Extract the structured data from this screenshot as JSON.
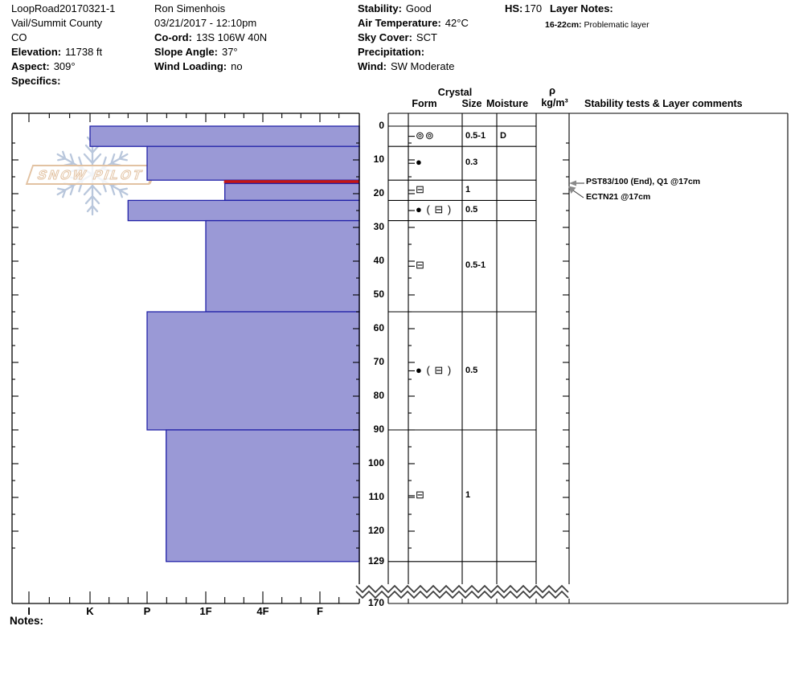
{
  "header": {
    "site": {
      "name": "LoopRoad20170321-1",
      "region": "Vail/Summit County",
      "state": "CO",
      "elevation_label": "Elevation:",
      "elevation": "11738 ft",
      "aspect_label": "Aspect:",
      "aspect": "309°",
      "specifics_label": "Specifics:",
      "specifics": ""
    },
    "obs": {
      "observer": "Ron Simenhois",
      "datetime": "03/21/2017 - 12:10pm",
      "coord_label": "Co-ord:",
      "coord": "13S 106W 40N",
      "slope_label": "Slope Angle:",
      "slope": "37°",
      "wind_loading_label": "Wind Loading:",
      "wind_loading": "no"
    },
    "wx": {
      "stability_label": "Stability:",
      "stability": "Good",
      "air_temp_label": "Air Temperature:",
      "air_temp": "42°C",
      "sky_label": "Sky Cover:",
      "sky": "SCT",
      "precip_label": "Precipitation:",
      "precip": "",
      "wind_label": "Wind:",
      "wind": "SW Moderate"
    },
    "hs_label": "HS:",
    "hs_value": "170",
    "layer_notes_label": "Layer Notes:",
    "layer_note_range": "16-22cm:",
    "layer_note_text": "Problematic layer"
  },
  "table_headers": {
    "crystal": "Crystal",
    "form": "Form",
    "size": "Size",
    "moisture": "Moisture",
    "rho": "ρ",
    "rho_units": "kg/m³",
    "stability": "Stability tests & Layer comments"
  },
  "notes_label": "Notes:",
  "watermark_text": "SNOW PILOT",
  "colors": {
    "bar_fill": "#9a99d6",
    "bar_border": "#2222a8",
    "problem_red": "#c51414",
    "watermark_blue": "#b9c7dc",
    "watermark_tan": "#e2c2a2"
  },
  "chart_data": {
    "type": "bar",
    "orientation": "horizontal",
    "title": "Snowpit hardness profile",
    "hardness_axis": [
      "I",
      "K",
      "P",
      "1F",
      "4F",
      "F"
    ],
    "depth_axis_cm": [
      0,
      10,
      20,
      30,
      40,
      50,
      60,
      70,
      80,
      90,
      100,
      110,
      120,
      129,
      170
    ],
    "axis_break_after_cm": 129,
    "total_height_cm": 170,
    "layers": [
      {
        "top_cm": 0,
        "bottom_cm": 6,
        "hardness": "K",
        "grain_form": "⊚⊚",
        "grain_size_mm": "0.5-1",
        "moisture": "D"
      },
      {
        "top_cm": 6,
        "bottom_cm": 16,
        "hardness": "P",
        "grain_form": "●",
        "grain_size_mm": "0.3",
        "moisture": ""
      },
      {
        "top_cm": 16,
        "bottom_cm": 22,
        "hardness": "1F-",
        "grain_form": "⊟",
        "grain_size_mm": "1",
        "moisture": "",
        "problem_layer": true
      },
      {
        "top_cm": 22,
        "bottom_cm": 28,
        "hardness": "P+",
        "grain_form": "● ( ⊟ )",
        "grain_size_mm": "0.5",
        "moisture": ""
      },
      {
        "top_cm": 28,
        "bottom_cm": 55,
        "hardness": "1F",
        "grain_form": "⊟",
        "grain_size_mm": "0.5-1",
        "moisture": ""
      },
      {
        "top_cm": 55,
        "bottom_cm": 90,
        "hardness": "P",
        "grain_form": "● ( ⊟ )",
        "grain_size_mm": "0.5",
        "moisture": ""
      },
      {
        "top_cm": 90,
        "bottom_cm": 129,
        "hardness": "P-",
        "grain_form": "⊟",
        "grain_size_mm": "1",
        "moisture": ""
      }
    ],
    "red_line": {
      "top_cm": 16,
      "bottom_cm": 17
    },
    "stability_tests": [
      "PST83/100 (End), Q1 @17cm",
      "ECTN21 @17cm"
    ]
  }
}
